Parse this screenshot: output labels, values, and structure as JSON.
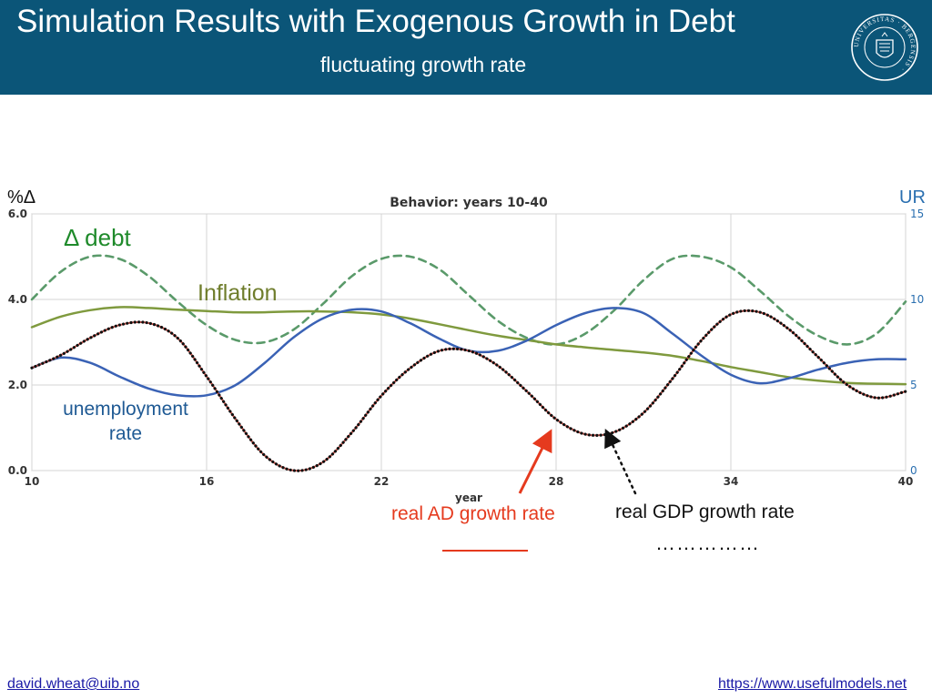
{
  "header": {
    "title": "Simulation Results with Exogenous Growth in Debt",
    "subtitle": "fluctuating growth rate",
    "logo_text": "UNIVERSITAS BERGENSIS",
    "bg_color": "#0b5578"
  },
  "annotations": {
    "y_unit": "%Δ",
    "y2_unit": "UR",
    "debt": "Δ debt",
    "inflation": "Inflation",
    "unemployment": "unemployment rate",
    "ad": "real AD growth rate",
    "gdp": "real GDP growth rate",
    "gdp_key": "……………"
  },
  "footer": {
    "email": "david.wheat@uib.no",
    "url": "https://www.usefulmodels.net"
  },
  "chart_data": {
    "type": "line",
    "title": "Behavior: years 10-40",
    "xlabel": "year",
    "ylabel": "%Δ",
    "y2label": "UR",
    "xlim": [
      10,
      40
    ],
    "ylim": [
      0,
      6
    ],
    "y2lim": [
      0,
      15
    ],
    "x_ticks": [
      10,
      16,
      22,
      28,
      34,
      40
    ],
    "y_ticks": [
      0,
      2,
      4,
      6
    ],
    "y_tick_labels": [
      "0.0",
      "2.0",
      "4.0",
      "6.0"
    ],
    "y2_ticks": [
      0,
      5,
      10,
      15
    ],
    "grid": true,
    "x": [
      10,
      11,
      12,
      13,
      14,
      15,
      16,
      17,
      18,
      19,
      20,
      21,
      22,
      23,
      24,
      25,
      26,
      27,
      28,
      29,
      30,
      31,
      32,
      33,
      34,
      35,
      36,
      37,
      38,
      39,
      40
    ],
    "series": [
      {
        "name": "Δ debt",
        "color": "#5a9a6a",
        "style": "dashed",
        "axis": "left",
        "values": [
          4.0,
          4.65,
          5.0,
          4.95,
          4.55,
          3.95,
          3.4,
          3.05,
          3.0,
          3.3,
          3.9,
          4.55,
          4.95,
          5.0,
          4.7,
          4.1,
          3.5,
          3.1,
          2.95,
          3.2,
          3.75,
          4.45,
          4.95,
          5.0,
          4.75,
          4.2,
          3.6,
          3.15,
          2.95,
          3.2,
          3.95
        ]
      },
      {
        "name": "Inflation",
        "color": "#7f9a3e",
        "style": "solid",
        "axis": "left",
        "values": [
          3.35,
          3.6,
          3.75,
          3.82,
          3.8,
          3.76,
          3.73,
          3.7,
          3.7,
          3.72,
          3.72,
          3.7,
          3.65,
          3.55,
          3.42,
          3.28,
          3.15,
          3.05,
          2.95,
          2.88,
          2.82,
          2.76,
          2.68,
          2.56,
          2.42,
          2.3,
          2.18,
          2.1,
          2.05,
          2.03,
          2.02
        ]
      },
      {
        "name": "unemployment rate",
        "color": "#3a62b5",
        "style": "solid",
        "axis": "right",
        "values": [
          6.0,
          6.6,
          6.3,
          5.5,
          4.8,
          4.4,
          4.4,
          5.0,
          6.3,
          7.8,
          8.9,
          9.4,
          9.3,
          8.6,
          7.7,
          7.0,
          7.0,
          7.6,
          8.5,
          9.2,
          9.5,
          9.2,
          8.0,
          6.7,
          5.6,
          5.1,
          5.4,
          5.9,
          6.3,
          6.5,
          6.5
        ]
      },
      {
        "name": "real AD growth rate",
        "color": "#e05a50",
        "style": "solid",
        "axis": "left",
        "values": [
          2.4,
          2.7,
          3.1,
          3.4,
          3.45,
          3.1,
          2.2,
          1.2,
          0.35,
          0.0,
          0.2,
          0.9,
          1.75,
          2.4,
          2.8,
          2.8,
          2.45,
          1.85,
          1.2,
          0.85,
          0.9,
          1.35,
          2.15,
          3.05,
          3.65,
          3.7,
          3.3,
          2.65,
          2.0,
          1.7,
          1.85
        ]
      },
      {
        "name": "real GDP growth rate",
        "color": "#111111",
        "style": "dotted",
        "axis": "left",
        "values": [
          2.4,
          2.7,
          3.1,
          3.4,
          3.45,
          3.1,
          2.2,
          1.2,
          0.35,
          0.0,
          0.2,
          0.9,
          1.75,
          2.4,
          2.8,
          2.8,
          2.45,
          1.85,
          1.2,
          0.85,
          0.9,
          1.35,
          2.15,
          3.05,
          3.65,
          3.7,
          3.3,
          2.65,
          2.0,
          1.7,
          1.85
        ]
      }
    ]
  }
}
